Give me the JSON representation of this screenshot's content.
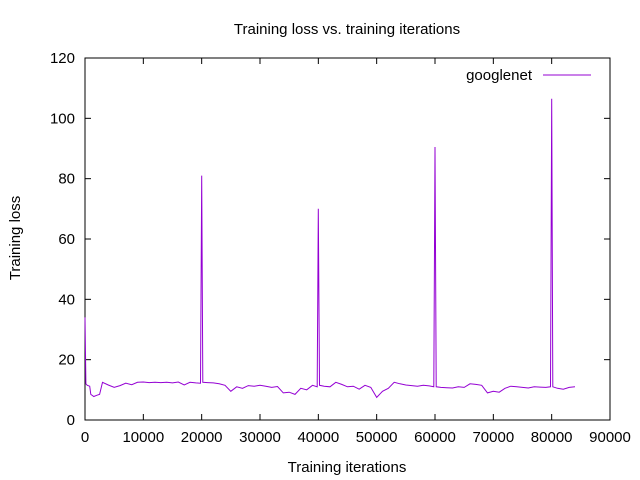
{
  "chart_data": {
    "type": "line",
    "title": "Training loss vs. training iterations",
    "xlabel": "Training iterations",
    "ylabel": "Training loss",
    "xlim": [
      0,
      90000
    ],
    "ylim": [
      0,
      120
    ],
    "x_ticks": [
      "0",
      "10000",
      "20000",
      "30000",
      "40000",
      "50000",
      "60000",
      "70000",
      "80000",
      "90000"
    ],
    "y_ticks": [
      "0",
      "20",
      "40",
      "60",
      "80",
      "100",
      "120"
    ],
    "grid": false,
    "legend_position": "top-right",
    "series": [
      {
        "name": "googlenet",
        "color": "#9400d3",
        "points": [
          [
            0,
            34
          ],
          [
            150,
            12
          ],
          [
            400,
            11.5
          ],
          [
            800,
            11.2
          ],
          [
            1000,
            8.5
          ],
          [
            1500,
            7.8
          ],
          [
            2000,
            8.2
          ],
          [
            2500,
            8.5
          ],
          [
            3000,
            12.5
          ],
          [
            4000,
            11.6
          ],
          [
            5000,
            10.8
          ],
          [
            6000,
            11.4
          ],
          [
            7000,
            12.2
          ],
          [
            8000,
            11.7
          ],
          [
            9000,
            12.5
          ],
          [
            10000,
            12.6
          ],
          [
            11000,
            12.4
          ],
          [
            12000,
            12.5
          ],
          [
            13000,
            12.4
          ],
          [
            14000,
            12.5
          ],
          [
            15000,
            12.3
          ],
          [
            16000,
            12.6
          ],
          [
            17000,
            11.6
          ],
          [
            18000,
            12.5
          ],
          [
            19000,
            12.3
          ],
          [
            19800,
            12.2
          ],
          [
            20000,
            81
          ],
          [
            20200,
            12.5
          ],
          [
            21000,
            12.4
          ],
          [
            22000,
            12.3
          ],
          [
            23000,
            12.0
          ],
          [
            24000,
            11.5
          ],
          [
            25000,
            9.5
          ],
          [
            26000,
            11.0
          ],
          [
            27000,
            10.5
          ],
          [
            28000,
            11.4
          ],
          [
            29000,
            11.2
          ],
          [
            30000,
            11.5
          ],
          [
            31000,
            11.2
          ],
          [
            32000,
            10.8
          ],
          [
            33000,
            11.1
          ],
          [
            34000,
            9.0
          ],
          [
            35000,
            9.2
          ],
          [
            36000,
            8.5
          ],
          [
            37000,
            10.5
          ],
          [
            38000,
            10.0
          ],
          [
            39000,
            11.5
          ],
          [
            39800,
            11.0
          ],
          [
            40000,
            70
          ],
          [
            40200,
            11.5
          ],
          [
            41000,
            11.2
          ],
          [
            42000,
            11.0
          ],
          [
            43000,
            12.5
          ],
          [
            44000,
            11.8
          ],
          [
            45000,
            11.0
          ],
          [
            46000,
            11.2
          ],
          [
            47000,
            10.2
          ],
          [
            48000,
            11.5
          ],
          [
            49000,
            10.8
          ],
          [
            50000,
            7.5
          ],
          [
            51000,
            9.5
          ],
          [
            52000,
            10.5
          ],
          [
            53000,
            12.5
          ],
          [
            54000,
            12.0
          ],
          [
            55000,
            11.6
          ],
          [
            56000,
            11.4
          ],
          [
            57000,
            11.2
          ],
          [
            58000,
            11.5
          ],
          [
            59000,
            11.3
          ],
          [
            59800,
            11.0
          ],
          [
            60000,
            90.5
          ],
          [
            60200,
            11.0
          ],
          [
            61000,
            10.8
          ],
          [
            62000,
            10.7
          ],
          [
            63000,
            10.6
          ],
          [
            64000,
            11.0
          ],
          [
            65000,
            10.8
          ],
          [
            66000,
            12.0
          ],
          [
            67000,
            11.8
          ],
          [
            68000,
            11.5
          ],
          [
            69000,
            9.0
          ],
          [
            70000,
            9.5
          ],
          [
            71000,
            9.2
          ],
          [
            72000,
            10.5
          ],
          [
            73000,
            11.2
          ],
          [
            74000,
            11.0
          ],
          [
            75000,
            10.8
          ],
          [
            76000,
            10.6
          ],
          [
            77000,
            11.0
          ],
          [
            78000,
            10.9
          ],
          [
            79000,
            10.8
          ],
          [
            79800,
            11.0
          ],
          [
            80000,
            106.5
          ],
          [
            80200,
            11.0
          ],
          [
            81000,
            10.5
          ],
          [
            82000,
            10.2
          ],
          [
            83000,
            10.8
          ],
          [
            84000,
            11.0
          ]
        ]
      }
    ]
  }
}
